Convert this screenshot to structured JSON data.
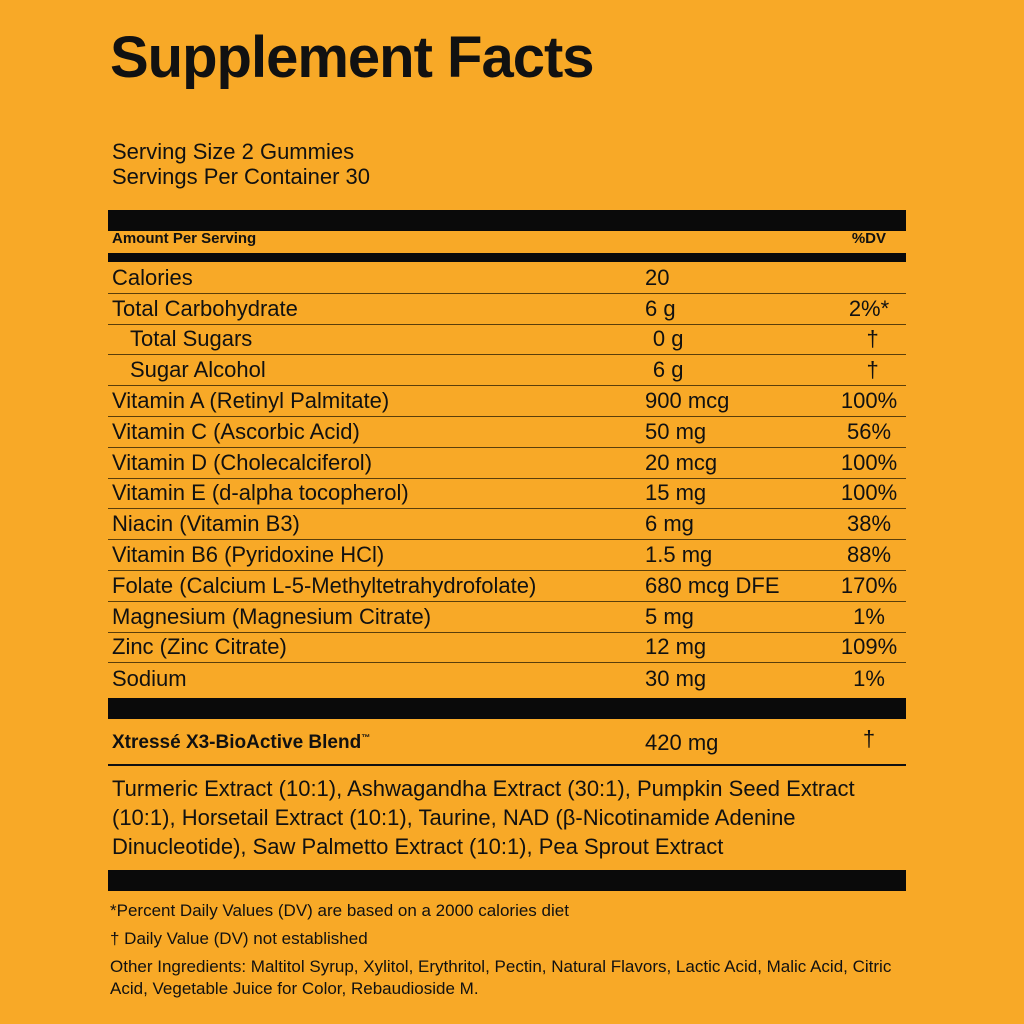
{
  "title": "Supplement Facts",
  "serving_size": "Serving Size 2 Gummies",
  "servings_per_container": "Servings Per Container 30",
  "header": {
    "amount": "Amount Per Serving",
    "dv": "%DV"
  },
  "rows": [
    {
      "name": "Calories",
      "amount": "20",
      "dv": ""
    },
    {
      "name": "Total Carbohydrate",
      "amount": "6 g",
      "dv": "2%*"
    },
    {
      "name": "Total Sugars",
      "amount": "0 g",
      "dv": "†"
    },
    {
      "name": "Sugar Alcohol",
      "amount": "6 g",
      "dv": "†"
    },
    {
      "name": "Vitamin A (Retinyl Palmitate)",
      "amount": "900 mcg",
      "dv": "100%"
    },
    {
      "name": "Vitamin C (Ascorbic Acid)",
      "amount": "50 mg",
      "dv": "56%"
    },
    {
      "name": "Vitamin D (Cholecalciferol)",
      "amount": "20 mcg",
      "dv": "100%"
    },
    {
      "name": "Vitamin E (d-alpha tocopherol)",
      "amount": "15 mg",
      "dv": "100%"
    },
    {
      "name": "Niacin (Vitamin B3)",
      "amount": "6 mg",
      "dv": "38%"
    },
    {
      "name": "Vitamin B6 (Pyridoxine HCl)",
      "amount": "1.5 mg",
      "dv": "88%"
    },
    {
      "name": "Folate (Calcium L-5-Methyltetrahydrofolate)",
      "amount": "680 mcg DFE",
      "dv": "170%"
    },
    {
      "name": "Magnesium (Magnesium Citrate)",
      "amount": "5 mg",
      "dv": "1%"
    },
    {
      "name": "Zinc (Zinc Citrate)",
      "amount": "12 mg",
      "dv": "109%"
    },
    {
      "name": "Sodium",
      "amount": "30 mg",
      "dv": "1%"
    }
  ],
  "blend": {
    "name": "Xtressé X3-BioActive Blend",
    "tm": "™",
    "amount": "420 mg",
    "dv": "†"
  },
  "blend_ingredients": "Turmeric Extract (10:1), Ashwagandha Extract (30:1), Pumpkin Seed Extract (10:1), Horsetail Extract (10:1), Taurine, NAD (β-Nicotinamide Adenine Dinucleotide), Saw Palmetto Extract (10:1), Pea Sprout Extract",
  "footnotes": {
    "dv_basis": "*Percent Daily Values (DV) are based on a 2000 calories diet",
    "dagger": "† Daily Value (DV) not established",
    "other_ingredients": "Other Ingredients: Maltitol Syrup, Xylitol, Erythritol, Pectin, Natural Flavors, Lactic Acid, Malic Acid, Citric Acid, Vegetable Juice for Color, Rebaudioside M."
  },
  "colors": {
    "background": "#F8A927",
    "ink": "#0a0a0a"
  }
}
